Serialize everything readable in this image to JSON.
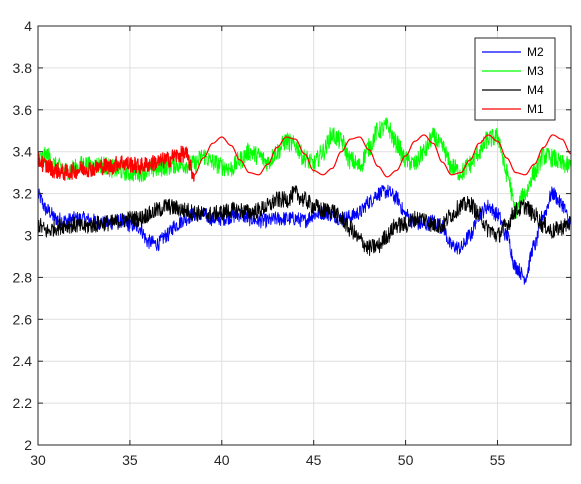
{
  "chart_data": {
    "type": "line",
    "title": "",
    "xlabel": "",
    "ylabel": "",
    "xlim": [
      30,
      59
    ],
    "ylim": [
      2,
      4
    ],
    "x_ticks": [
      30,
      35,
      40,
      45,
      50,
      55
    ],
    "y_ticks": [
      2,
      2.2,
      2.4,
      2.6,
      2.8,
      3,
      3.2,
      3.4,
      3.6,
      3.8,
      4
    ],
    "x_tick_labels": [
      "30",
      "35",
      "40",
      "45",
      "50",
      "55"
    ],
    "y_tick_labels": [
      "2",
      "2.2",
      "2.4",
      "2.6",
      "2.8",
      "3",
      "3.2",
      "3.4",
      "3.6",
      "3.8",
      "4"
    ],
    "grid": true,
    "legend_position": "top-right",
    "series": [
      {
        "name": "M2",
        "color": "#0000ff",
        "x": [
          30,
          30.5,
          31,
          31.5,
          32,
          32.5,
          33,
          33.5,
          34,
          34.5,
          35,
          35.5,
          36,
          36.5,
          37,
          37.5,
          38,
          38.5,
          39,
          39.5,
          40,
          40.5,
          41,
          41.5,
          42,
          42.5,
          43,
          43.5,
          44,
          44.5,
          45,
          45.5,
          46,
          46.5,
          47,
          47.5,
          48,
          48.5,
          49,
          49.5,
          50,
          50.5,
          51,
          51.5,
          52,
          52.5,
          53,
          53.5,
          54,
          54.5,
          55,
          55.5,
          56,
          56.5,
          57,
          57.5,
          58,
          58.5,
          59
        ],
        "y": [
          3.19,
          3.12,
          3.08,
          3.07,
          3.08,
          3.08,
          3.07,
          3.06,
          3.06,
          3.07,
          3.05,
          3.04,
          2.97,
          2.96,
          3.0,
          3.05,
          3.08,
          3.1,
          3.1,
          3.08,
          3.08,
          3.09,
          3.1,
          3.08,
          3.07,
          3.07,
          3.08,
          3.08,
          3.08,
          3.07,
          3.1,
          3.11,
          3.1,
          3.08,
          3.09,
          3.11,
          3.16,
          3.2,
          3.21,
          3.18,
          3.1,
          3.06,
          3.05,
          3.07,
          3.04,
          2.95,
          2.94,
          3.0,
          3.1,
          3.14,
          3.1,
          3.0,
          2.85,
          2.8,
          2.95,
          3.1,
          3.2,
          3.15,
          3.05
        ]
      },
      {
        "name": "M3",
        "color": "#00ff00",
        "x": [
          30,
          30.5,
          31,
          31.5,
          32,
          32.5,
          33,
          33.5,
          34,
          34.5,
          35,
          35.5,
          36,
          36.5,
          37,
          37.5,
          38,
          38.5,
          39,
          39.5,
          40,
          40.5,
          41,
          41.5,
          42,
          42.5,
          43,
          43.5,
          44,
          44.5,
          45,
          45.5,
          46,
          46.5,
          47,
          47.5,
          48,
          48.5,
          49,
          49.5,
          50,
          50.5,
          51,
          51.5,
          52,
          52.5,
          53,
          53.5,
          54,
          54.5,
          55,
          55.5,
          56,
          56.5,
          57,
          57.5,
          58,
          58.5,
          59
        ],
        "y": [
          3.36,
          3.38,
          3.33,
          3.31,
          3.32,
          3.34,
          3.33,
          3.34,
          3.32,
          3.31,
          3.3,
          3.3,
          3.31,
          3.32,
          3.33,
          3.34,
          3.34,
          3.34,
          3.38,
          3.35,
          3.33,
          3.32,
          3.36,
          3.4,
          3.38,
          3.35,
          3.4,
          3.45,
          3.43,
          3.37,
          3.34,
          3.4,
          3.48,
          3.45,
          3.36,
          3.33,
          3.42,
          3.5,
          3.52,
          3.44,
          3.36,
          3.34,
          3.4,
          3.47,
          3.42,
          3.33,
          3.3,
          3.34,
          3.4,
          3.46,
          3.47,
          3.3,
          3.12,
          3.2,
          3.3,
          3.38,
          3.37,
          3.34,
          3.33
        ]
      },
      {
        "name": "M4",
        "color": "#000000",
        "x": [
          30,
          30.5,
          31,
          31.5,
          32,
          32.5,
          33,
          33.5,
          34,
          34.5,
          35,
          35.5,
          36,
          36.5,
          37,
          37.5,
          38,
          38.5,
          39,
          39.5,
          40,
          40.5,
          41,
          41.5,
          42,
          42.5,
          43,
          43.5,
          44,
          44.5,
          45,
          45.5,
          46,
          46.5,
          47,
          47.5,
          48,
          48.5,
          49,
          49.5,
          50,
          50.5,
          51,
          51.5,
          52,
          52.5,
          53,
          53.5,
          54,
          54.5,
          55,
          55.5,
          56,
          56.5,
          57,
          57.5,
          58,
          58.5,
          59
        ],
        "y": [
          3.05,
          3.02,
          3.04,
          3.05,
          3.05,
          3.04,
          3.05,
          3.06,
          3.06,
          3.07,
          3.08,
          3.08,
          3.1,
          3.12,
          3.14,
          3.13,
          3.12,
          3.11,
          3.1,
          3.1,
          3.11,
          3.12,
          3.12,
          3.11,
          3.12,
          3.14,
          3.17,
          3.17,
          3.2,
          3.17,
          3.14,
          3.12,
          3.12,
          3.08,
          3.03,
          2.98,
          2.94,
          2.95,
          3.0,
          3.05,
          3.05,
          3.08,
          3.08,
          3.05,
          3.05,
          3.1,
          3.14,
          3.15,
          3.1,
          3.03,
          3.0,
          3.05,
          3.12,
          3.14,
          3.1,
          3.05,
          3.02,
          3.04,
          3.06
        ]
      },
      {
        "name": "M1",
        "color": "#ff0000",
        "x": [
          30,
          30.5,
          31,
          31.5,
          32,
          32.5,
          33,
          33.5,
          34,
          34.5,
          35,
          35.5,
          36,
          36.5,
          37,
          37.5,
          38,
          38.5,
          39,
          39.5,
          40,
          40.5,
          41,
          41.5,
          42,
          42.5,
          43,
          43.5,
          44,
          44.5,
          45,
          45.5,
          46,
          46.5,
          47,
          47.5,
          48,
          48.5,
          49,
          49.5,
          50,
          50.5,
          51,
          51.5,
          52,
          52.5,
          53,
          53.5,
          54,
          54.5,
          55,
          55.5,
          56,
          56.5,
          57,
          57.5,
          58,
          58.5,
          59
        ],
        "y": [
          3.36,
          3.33,
          3.31,
          3.3,
          3.31,
          3.32,
          3.32,
          3.33,
          3.33,
          3.35,
          3.34,
          3.33,
          3.34,
          3.35,
          3.36,
          3.38,
          3.39,
          3.29,
          3.37,
          3.44,
          3.47,
          3.43,
          3.36,
          3.3,
          3.29,
          3.34,
          3.42,
          3.47,
          3.46,
          3.39,
          3.31,
          3.29,
          3.32,
          3.4,
          3.46,
          3.47,
          3.41,
          3.33,
          3.28,
          3.31,
          3.38,
          3.45,
          3.48,
          3.44,
          3.35,
          3.29,
          3.3,
          3.36,
          3.44,
          3.48,
          3.45,
          3.37,
          3.3,
          3.29,
          3.34,
          3.42,
          3.48,
          3.46,
          3.39
        ]
      }
    ]
  }
}
